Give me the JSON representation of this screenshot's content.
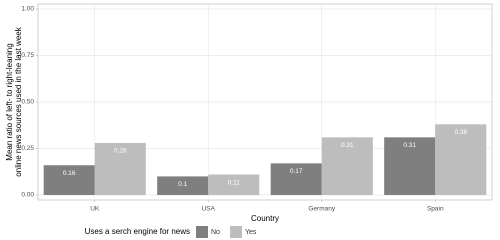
{
  "chart_data": {
    "type": "bar",
    "ylabel": [
      "Mean ratio of left- to right-leaning",
      "online news sources used in the last week"
    ],
    "xlabel": "Country",
    "legend_title": "Uses a serch engine for news",
    "legend_position": "bottom",
    "categories": [
      "UK",
      "USA",
      "Germany",
      "Spain"
    ],
    "series": [
      {
        "name": "No",
        "color": "#7f7f7f",
        "values": [
          0.16,
          0.1,
          0.17,
          0.31
        ]
      },
      {
        "name": "Yes",
        "color": "#bdbdbd",
        "values": [
          0.28,
          0.11,
          0.31,
          0.38
        ]
      }
    ],
    "ylim": [
      0,
      1
    ],
    "yticks": [
      {
        "value": 0,
        "label": "0.00"
      },
      {
        "value": 0.25,
        "label": "0.25"
      },
      {
        "value": 0.5,
        "label": "0.50"
      },
      {
        "value": 0.75,
        "label": "0.75"
      },
      {
        "value": 1,
        "label": "1.00"
      }
    ],
    "grid": true
  }
}
